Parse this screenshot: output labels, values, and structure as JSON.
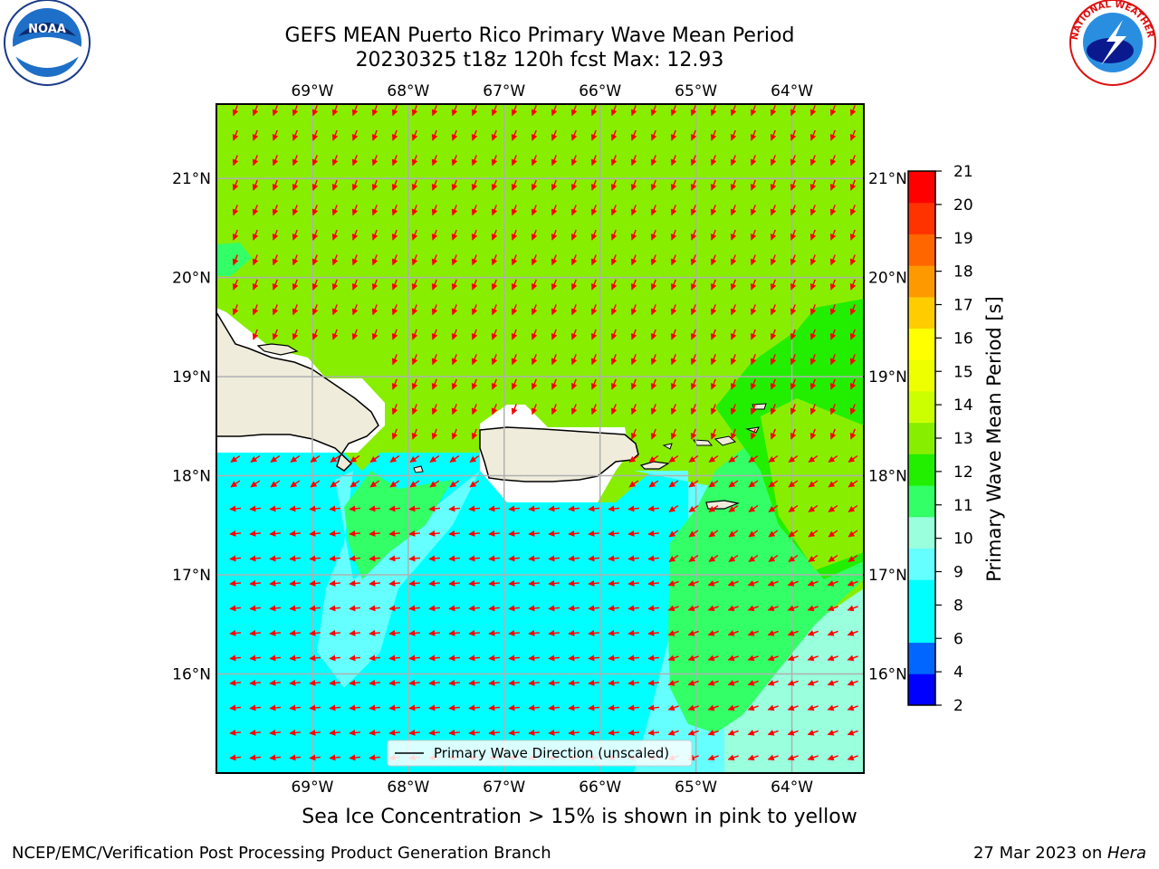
{
  "header": {
    "title_line1": "GEFS MEAN Puerto Rico Primary Wave Mean Period",
    "title_line2": "20230325 t18z 120h fcst   Max: 12.93"
  },
  "logos": {
    "left": "noara-logo",
    "left_text": "NOAA",
    "right": "nws-logo",
    "right_text": "NATIONAL WEATHER SERVICE"
  },
  "map": {
    "lon_labels": [
      "69°W",
      "68°W",
      "67°W",
      "66°W",
      "65°W",
      "64°W"
    ],
    "lon_values": [
      -69,
      -68,
      -67,
      -66,
      -65,
      -64
    ],
    "lat_labels": [
      "21°N",
      "20°N",
      "19°N",
      "18°N",
      "17°N",
      "16°N"
    ],
    "lat_values": [
      21,
      20,
      19,
      18,
      17,
      16
    ],
    "extent": {
      "lon_min": -70,
      "lon_max": -63.25,
      "lat_min": 15,
      "lat_max": 21.75
    },
    "legend_label": "Primary Wave Direction (unscaled)",
    "arrow_color": "#ff0000",
    "land_color": "#efecdc",
    "max_value": 12.93
  },
  "colorbar": {
    "label": "Primary Wave Mean Period [s]",
    "ticks": [
      "21",
      "20",
      "19",
      "18",
      "17",
      "16",
      "15",
      "14",
      "13",
      "12",
      "11",
      "10",
      "9",
      "8",
      "6",
      "4",
      "2"
    ],
    "colors_bottom_to_top": [
      "#0000ff",
      "#0066ff",
      "#00ffff",
      "#00ffff",
      "#66ffff",
      "#99ffdd",
      "#33ff66",
      "#22ee00",
      "#88ee00",
      "#ccff00",
      "#eeff00",
      "#ffff00",
      "#ffcc00",
      "#ff9900",
      "#ff6600",
      "#ff3300",
      "#ff0000"
    ]
  },
  "footer": {
    "note": "Sea Ice Concentration > 15% is shown in pink to yellow",
    "branch": "NCEP/EMC/Verification Post Processing Product Generation Branch",
    "date": "27 Mar 2023 on ",
    "host": "Hera"
  }
}
